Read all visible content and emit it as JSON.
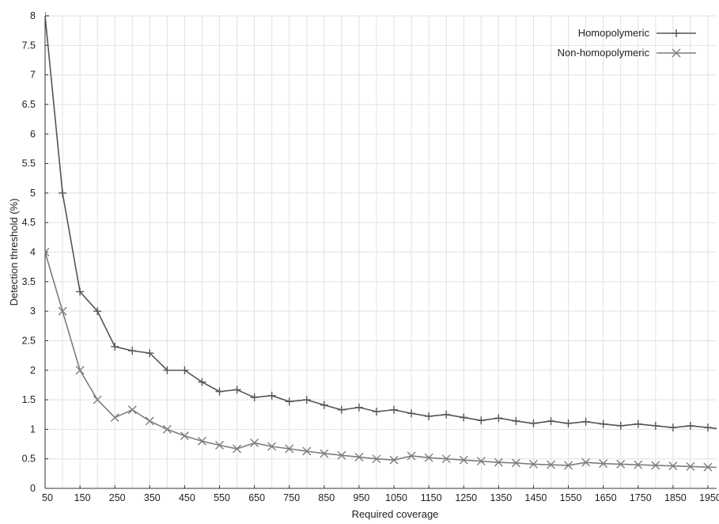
{
  "chart_data": {
    "type": "line",
    "xlabel": "Required coverage",
    "ylabel": "Detection threshold (%)",
    "xlim": [
      50,
      1975
    ],
    "ylim": [
      0,
      8
    ],
    "x_ticks": [
      50,
      150,
      250,
      350,
      450,
      550,
      650,
      750,
      850,
      950,
      1050,
      1150,
      1250,
      1350,
      1450,
      1550,
      1650,
      1750,
      1850,
      1950
    ],
    "y_ticks": [
      0,
      0.5,
      1,
      1.5,
      2,
      2.5,
      3,
      3.5,
      4,
      4.5,
      5,
      5.5,
      6,
      6.5,
      7,
      7.5,
      8
    ],
    "grid": true,
    "legend_position": "top-right",
    "x": [
      50,
      100,
      150,
      200,
      250,
      300,
      350,
      400,
      450,
      500,
      550,
      600,
      650,
      700,
      750,
      800,
      850,
      900,
      950,
      1000,
      1050,
      1100,
      1150,
      1200,
      1250,
      1300,
      1350,
      1400,
      1450,
      1500,
      1550,
      1600,
      1650,
      1700,
      1750,
      1800,
      1850,
      1900,
      1950,
      2000
    ],
    "series": [
      {
        "name": "Homopolymeric",
        "color": "#555555",
        "marker": "plus",
        "values": [
          8,
          5,
          3.33,
          3,
          2.4,
          2.33,
          2.29,
          2,
          2,
          1.8,
          1.64,
          1.67,
          1.54,
          1.57,
          1.47,
          1.5,
          1.41,
          1.33,
          1.37,
          1.3,
          1.33,
          1.27,
          1.22,
          1.25,
          1.2,
          1.15,
          1.19,
          1.14,
          1.1,
          1.14,
          1.1,
          1.13,
          1.09,
          1.06,
          1.09,
          1.06,
          1.03,
          1.06,
          1.03,
          1.0
        ]
      },
      {
        "name": "Non-homopolymeric",
        "color": "#7d7d7d",
        "marker": "x",
        "values": [
          4,
          3,
          2,
          1.5,
          1.2,
          1.33,
          1.14,
          1.0,
          0.89,
          0.8,
          0.73,
          0.67,
          0.77,
          0.71,
          0.67,
          0.63,
          0.59,
          0.56,
          0.53,
          0.5,
          0.48,
          0.55,
          0.52,
          0.5,
          0.48,
          0.46,
          0.44,
          0.43,
          0.41,
          0.4,
          0.39,
          0.44,
          0.42,
          0.41,
          0.4,
          0.39,
          0.38,
          0.37,
          0.36,
          0.35
        ]
      }
    ]
  }
}
